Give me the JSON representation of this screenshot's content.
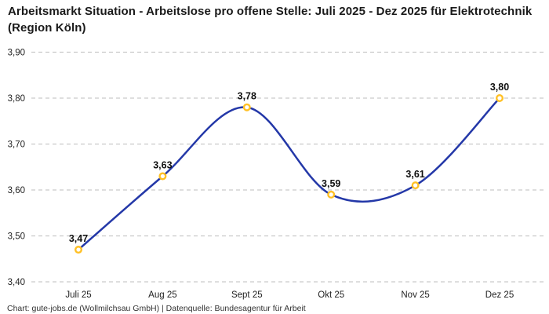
{
  "header": {
    "title": "Arbeitsmarkt Situation - Arbeitslose pro offene Stelle: Juli 2025 - Dez 2025 für Elektrotechnik (Region Köln)"
  },
  "footer": {
    "credit": "Chart: gute-jobs.de (Wollmilchsau GmbH) | Datenquelle: Bundesagentur für Arbeit"
  },
  "colors": {
    "line": "#2438a8",
    "marker_stroke": "#ffc025",
    "marker_fill": "#ffffff",
    "grid": "#c9c9c9",
    "axis_text": "#222222",
    "label_text": "#111111"
  },
  "chart_data": {
    "type": "line",
    "title": "Arbeitsmarkt Situation - Arbeitslose pro offene Stelle: Juli 2025 - Dez 2025 für Elektrotechnik (Region Köln)",
    "categories": [
      "Juli 25",
      "Aug 25",
      "Sept 25",
      "Okt 25",
      "Nov 25",
      "Dez 25"
    ],
    "values": [
      3.47,
      3.63,
      3.78,
      3.59,
      3.61,
      3.8
    ],
    "value_labels": [
      "3,47",
      "3,63",
      "3,78",
      "3,59",
      "3,61",
      "3,80"
    ],
    "series_name": "Arbeitslose pro offene Stelle",
    "ylim": [
      3.4,
      3.9
    ],
    "y_ticks": [
      3.9,
      3.8,
      3.7,
      3.6,
      3.5,
      3.4
    ],
    "y_tick_labels": [
      "3,90",
      "3,80",
      "3,70",
      "3,60",
      "3,50",
      "3,40"
    ],
    "xlabel": "",
    "ylabel": "",
    "grid": "horizontal-dashed",
    "legend": "none",
    "marker_style": "open-circle",
    "curve": "smooth"
  }
}
